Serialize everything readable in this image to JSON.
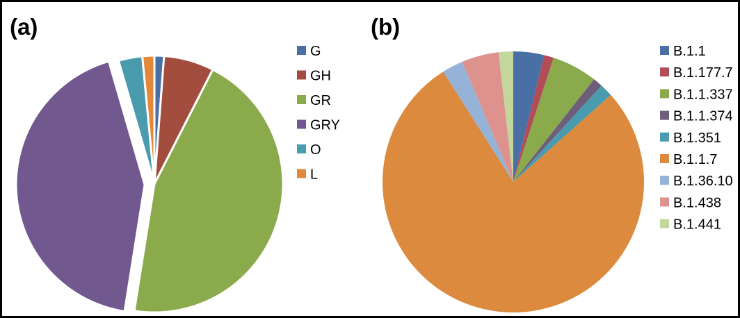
{
  "panel_a": {
    "label": "(a)"
  },
  "panel_b": {
    "label": "(b)"
  },
  "chart_data": [
    {
      "type": "pie",
      "panel": "(a)",
      "start": "12 o'clock",
      "direction": "clockwise",
      "exploded_slice": "GRY",
      "legend_position": "right",
      "slices": [
        {
          "label": "G",
          "value": 1.2,
          "color": "#4A6FA5"
        },
        {
          "label": "GH",
          "value": 6.3,
          "color": "#A34D3F"
        },
        {
          "label": "GR",
          "value": 45.0,
          "color": "#8AAA4B"
        },
        {
          "label": "GRY",
          "value": 43.0,
          "color": "#71588F"
        },
        {
          "label": "O",
          "value": 3.0,
          "color": "#4A9BAE"
        },
        {
          "label": "L",
          "value": 1.5,
          "color": "#E1883A"
        }
      ]
    },
    {
      "type": "pie",
      "panel": "(b)",
      "start": "12 o'clock",
      "direction": "clockwise",
      "legend_position": "right",
      "slices": [
        {
          "label": "B.1.1",
          "value": 3.8,
          "color": "#4A6FA5"
        },
        {
          "label": "B.1.177.7",
          "value": 1.2,
          "color": "#B24C57"
        },
        {
          "label": "B.1.1.337",
          "value": 5.6,
          "color": "#8AAA4B"
        },
        {
          "label": "B.1.1.374",
          "value": 1.2,
          "color": "#6E5E7A"
        },
        {
          "label": "B.1.351",
          "value": 1.6,
          "color": "#4A9BAE"
        },
        {
          "label": "B.1.1.7",
          "value": 77.6,
          "color": "#DB8A3E"
        },
        {
          "label": "B.1.36.10",
          "value": 2.6,
          "color": "#95B3D7"
        },
        {
          "label": "B.1.438",
          "value": 4.6,
          "color": "#DE928E"
        },
        {
          "label": "B.1.441",
          "value": 1.8,
          "color": "#C3D69B"
        }
      ]
    }
  ]
}
